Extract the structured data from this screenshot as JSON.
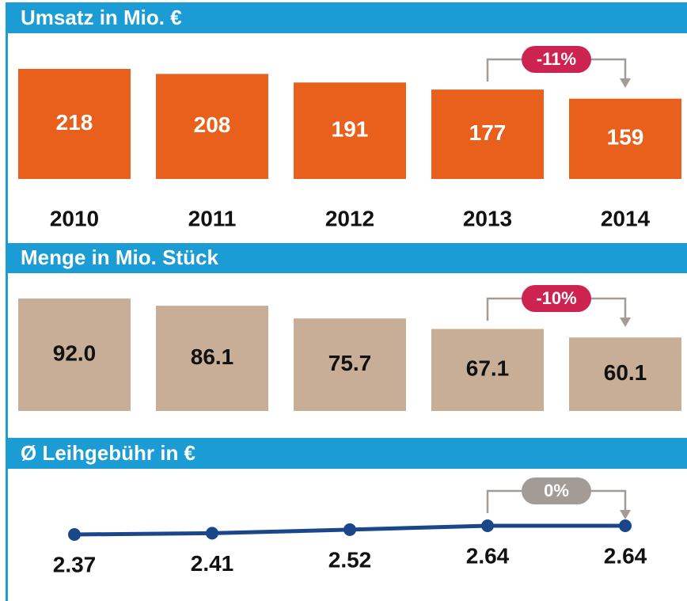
{
  "chart_data": [
    {
      "type": "bar",
      "title": "Umsatz in Mio. €",
      "categories": [
        "2010",
        "2011",
        "2012",
        "2013",
        "2014"
      ],
      "values": [
        218,
        208,
        191,
        177,
        159
      ],
      "color": "#e8601c",
      "annotation": "-11%"
    },
    {
      "type": "bar",
      "title": "Menge in Mio. Stück",
      "values": [
        92.0,
        86.1,
        75.7,
        67.1,
        60.1
      ],
      "value_labels": [
        "92.0",
        "86.1",
        "75.7",
        "67.1",
        "60.1"
      ],
      "color": "#c8ae96",
      "annotation": "-10%"
    },
    {
      "type": "line",
      "title": "Ø Leihgebühr in €",
      "values": [
        2.37,
        2.41,
        2.52,
        2.64,
        2.64
      ],
      "color": "#1a4789",
      "annotation": "0%"
    }
  ]
}
